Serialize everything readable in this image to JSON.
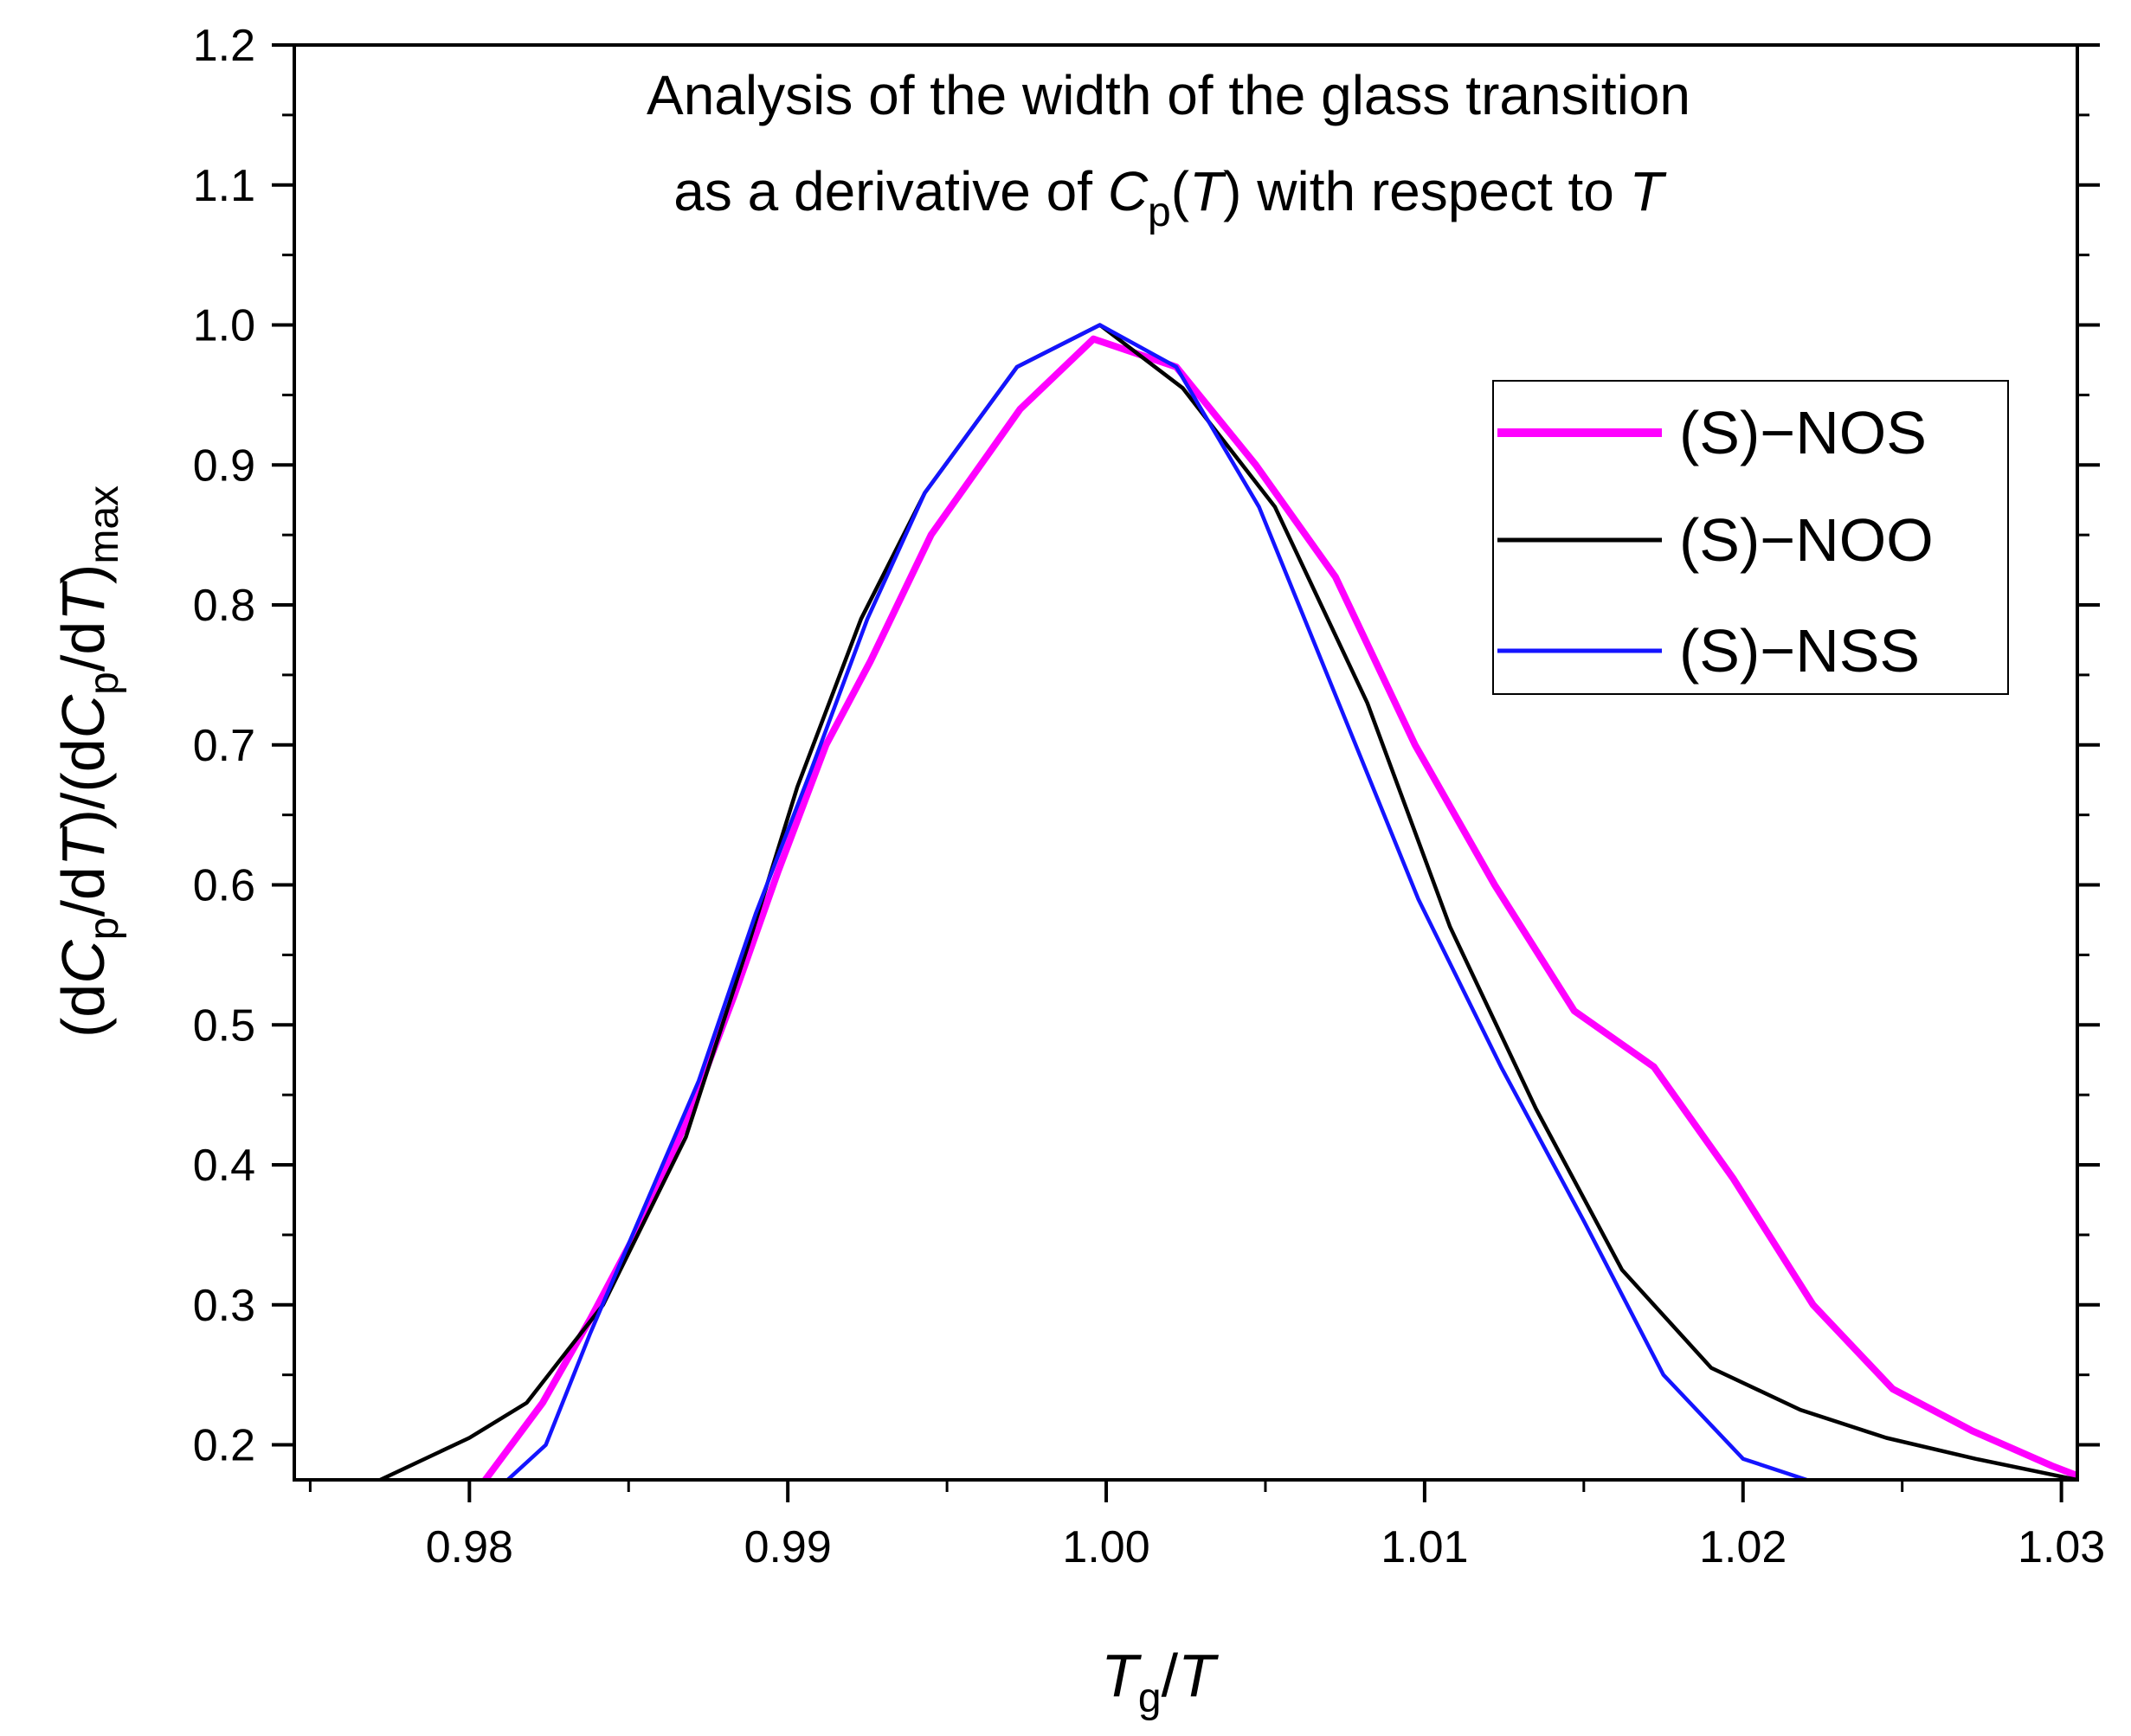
{
  "chart_data": {
    "type": "line",
    "title": {
      "line1": "Analysis of the width of the glass transition",
      "line2": {
        "prefix": "as a derivative of ",
        "var": "C",
        "sub": "p",
        "open": "(",
        "arg": "T",
        "close": ")",
        "middle": " with respect to ",
        "wrt": "T"
      }
    },
    "xlabel": {
      "main": "T",
      "sub": "g",
      "rest": "/",
      "den": "T"
    },
    "ylabel": {
      "p1": "(d",
      "C1": "C",
      "s1": "p",
      "p2": "/d",
      "T1": "T",
      "p3": ")/(d",
      "C2": "C",
      "s2": "p",
      "p4": "/d",
      "T2": "T",
      "p5": ")",
      "s3": "max"
    },
    "xlim": [
      0.9745,
      1.0305
    ],
    "ylim": [
      0.175,
      1.2
    ],
    "x_ticks": [
      "0.98",
      "0.99",
      "1.00",
      "1.01",
      "1.02",
      "1.03"
    ],
    "x_tick_values": [
      0.98,
      0.99,
      1.0,
      1.01,
      1.02,
      1.03
    ],
    "y_ticks": [
      "0.2",
      "0.3",
      "0.4",
      "0.5",
      "0.6",
      "0.7",
      "0.8",
      "0.9",
      "1.0",
      "1.1",
      "1.2"
    ],
    "y_tick_values": [
      0.2,
      0.3,
      0.4,
      0.5,
      0.6,
      0.7,
      0.8,
      0.9,
      1.0,
      1.1,
      1.2
    ],
    "legend_position": "right, upper-middle",
    "series": [
      {
        "name": "(S)−NOS",
        "color": "#ff00ff",
        "x": [
          0.9805,
          0.9823,
          0.9838,
          0.9852,
          0.9868,
          0.9883,
          0.9897,
          0.9912,
          0.9926,
          0.9945,
          0.9973,
          0.9996,
          1.0022,
          1.0047,
          1.0072,
          1.0097,
          1.0122,
          1.0147,
          1.0172,
          1.0197,
          1.0222,
          1.0247,
          1.0272,
          1.0297,
          1.0305
        ],
        "y": [
          0.175,
          0.23,
          0.29,
          0.35,
          0.43,
          0.52,
          0.61,
          0.7,
          0.76,
          0.85,
          0.94,
          0.99,
          0.97,
          0.9,
          0.82,
          0.7,
          0.6,
          0.51,
          0.47,
          0.39,
          0.3,
          0.24,
          0.21,
          0.185,
          0.178
        ]
      },
      {
        "name": "(S)−NOO",
        "color": "#000000",
        "x": [
          0.9772,
          0.98,
          0.9818,
          0.9842,
          0.9868,
          0.9888,
          0.9903,
          0.9923,
          0.9943,
          0.9972,
          0.9998,
          1.0024,
          1.0053,
          1.0082,
          1.0108,
          1.0135,
          1.0162,
          1.019,
          1.0218,
          1.0245,
          1.0273,
          1.0305
        ],
        "y": [
          0.175,
          0.205,
          0.23,
          0.3,
          0.42,
          0.56,
          0.67,
          0.79,
          0.88,
          0.97,
          1.0,
          0.955,
          0.87,
          0.73,
          0.57,
          0.44,
          0.325,
          0.255,
          0.225,
          0.205,
          0.19,
          0.175
        ]
      },
      {
        "name": "(S)−NSS",
        "color": "#1414ff",
        "x": [
          0.9812,
          0.9824,
          0.9838,
          0.9855,
          0.9872,
          0.989,
          0.9907,
          0.9925,
          0.9943,
          0.9972,
          0.9998,
          1.0022,
          1.0048,
          1.0073,
          1.0098,
          1.0124,
          1.015,
          1.0175,
          1.02,
          1.022
        ],
        "y": [
          0.175,
          0.2,
          0.28,
          0.37,
          0.46,
          0.58,
          0.68,
          0.79,
          0.88,
          0.97,
          1.0,
          0.97,
          0.87,
          0.73,
          0.59,
          0.47,
          0.36,
          0.25,
          0.19,
          0.175
        ]
      }
    ]
  }
}
